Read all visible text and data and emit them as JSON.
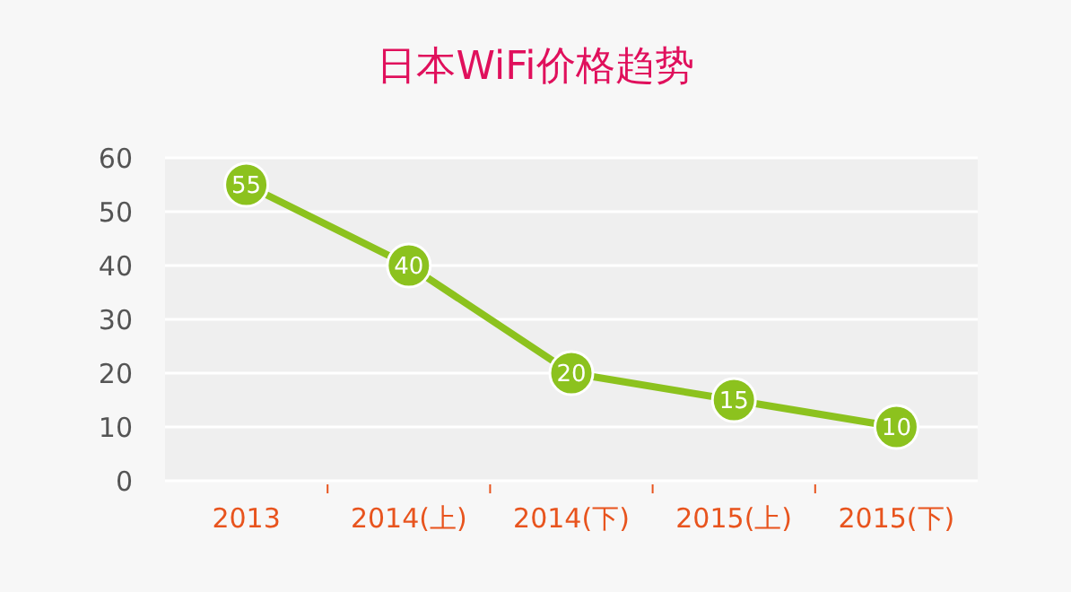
{
  "chart_data": {
    "type": "line",
    "title": "日本WiFi价格趋势",
    "categories": [
      "2013",
      "2014(上)",
      "2014(下)",
      "2015(上)",
      "2015(下)"
    ],
    "series": [
      {
        "color": "#8cc21e",
        "values": [
          55,
          40,
          20,
          15,
          10
        ]
      }
    ],
    "ylim": [
      0,
      60
    ],
    "yticks": [
      0,
      10,
      20,
      30,
      40,
      50,
      60
    ],
    "grid": "y",
    "marker": "circle",
    "data_labels": true
  }
}
